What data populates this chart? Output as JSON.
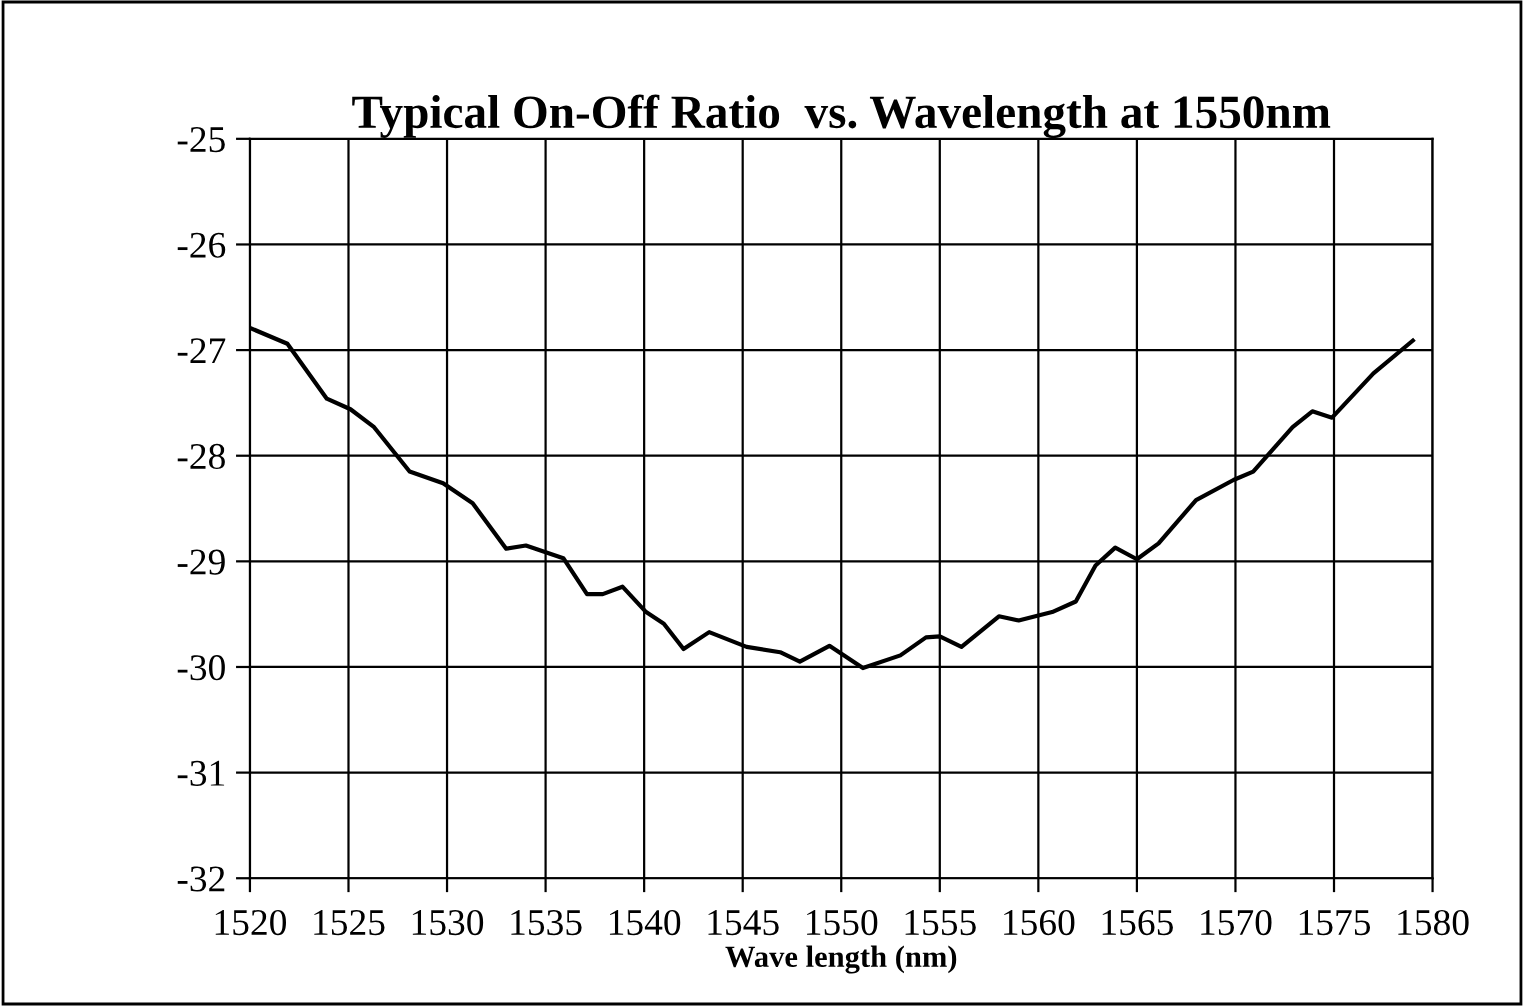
{
  "chart_data": {
    "type": "line",
    "title": "Typical On-Off Ratio  vs. Wavelength at 1550nm",
    "xlabel": "Wave length (nm)",
    "x": [
      1520,
      1521.9,
      1523.9,
      1525.1,
      1526.3,
      1528.1,
      1529.8,
      1531.3,
      1533.0,
      1534.0,
      1535.9,
      1537.1,
      1537.9,
      1538.9,
      1540.1,
      1541.0,
      1542.0,
      1543.3,
      1545.2,
      1546.9,
      1547.9,
      1549.4,
      1551.1,
      1553.0,
      1554.3,
      1555.0,
      1556.1,
      1558.0,
      1559.0,
      1560.7,
      1561.9,
      1562.9,
      1563.9,
      1565.0,
      1566.1,
      1568.0,
      1569.9,
      1570.9,
      1572.9,
      1573.9,
      1574.9,
      1577.0,
      1579.0
    ],
    "series": [
      {
        "color": "#000000",
        "values": [
          -26.79,
          -26.94,
          -27.46,
          -27.56,
          -27.73,
          -28.15,
          -28.26,
          -28.45,
          -28.88,
          -28.85,
          -28.97,
          -29.31,
          -29.31,
          -29.24,
          -29.48,
          -29.59,
          -29.83,
          -29.67,
          -29.81,
          -29.86,
          -29.95,
          -29.8,
          -30.01,
          -29.89,
          -29.72,
          -29.71,
          -29.81,
          -29.52,
          -29.56,
          -29.48,
          -29.38,
          -29.04,
          -28.87,
          -28.98,
          -28.83,
          -28.42,
          -28.23,
          -28.15,
          -27.73,
          -27.58,
          -27.64,
          -27.22,
          -26.91
        ]
      }
    ],
    "xlim": [
      1520,
      1580
    ],
    "xticks": [
      1520,
      1525,
      1530,
      1535,
      1540,
      1545,
      1550,
      1555,
      1560,
      1565,
      1570,
      1575,
      1580
    ],
    "ylim": [
      -32,
      -25
    ],
    "yticks": [
      -32,
      -31,
      -30,
      -29,
      -28,
      -27,
      -26,
      -25
    ],
    "grid": true,
    "legend": false,
    "marker": "none",
    "line_style": "solid"
  }
}
